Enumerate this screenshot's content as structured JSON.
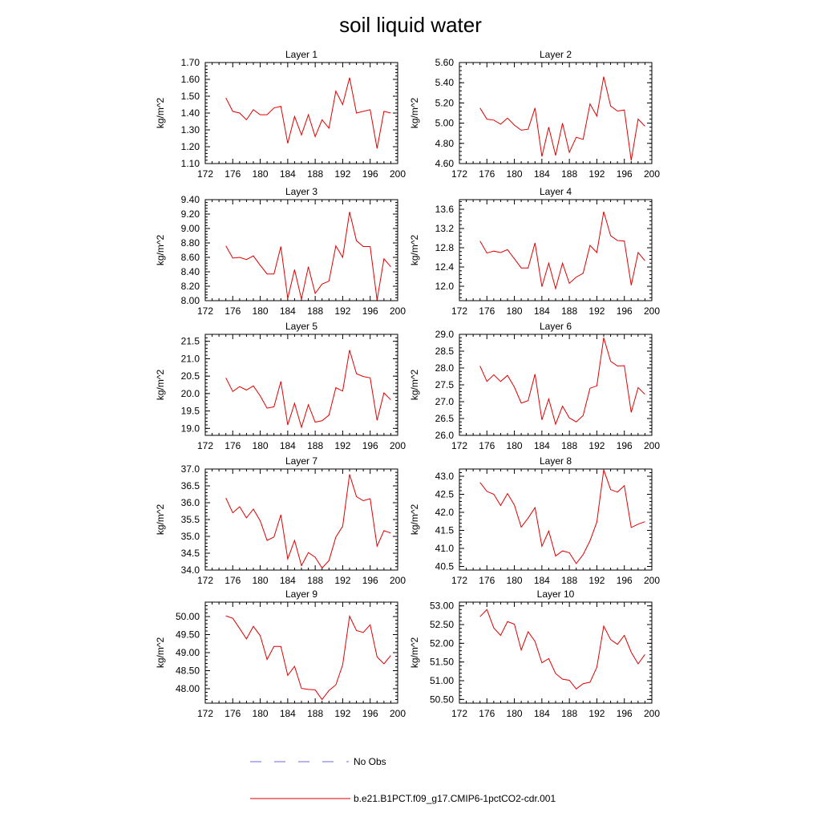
{
  "figure": {
    "title": "soil liquid water",
    "legend": [
      {
        "label": "No Obs",
        "color": "#6a6adf",
        "style": "dashed"
      },
      {
        "label": "b.e21.B1PCT.f09_g17.CMIP6-1pctCO2-cdr.001",
        "color": "#e00000",
        "style": "solid"
      }
    ]
  },
  "chart_data": [
    {
      "type": "line",
      "title": "Layer 1",
      "xlabel": "",
      "ylabel": "kg/m^2",
      "xlim": [
        172,
        200
      ],
      "ylim": [
        1.1,
        1.7
      ],
      "x_ticks": [
        172,
        176,
        180,
        184,
        188,
        192,
        196,
        200
      ],
      "y_ticks": [
        "1.10",
        "1.20",
        "1.30",
        "1.40",
        "1.50",
        "1.60",
        "1.70"
      ],
      "y_minor_step": 0.02,
      "series": [
        {
          "x": [
            175,
            176,
            177,
            178,
            179,
            180,
            181,
            182,
            183,
            184,
            185,
            186,
            187,
            188,
            189,
            190,
            191,
            192,
            193,
            194,
            195,
            196,
            197,
            198,
            199
          ],
          "values": [
            1.49,
            1.41,
            1.4,
            1.36,
            1.42,
            1.39,
            1.39,
            1.43,
            1.44,
            1.22,
            1.38,
            1.27,
            1.39,
            1.26,
            1.36,
            1.31,
            1.53,
            1.45,
            1.61,
            1.4,
            1.41,
            1.42,
            1.19,
            1.41,
            1.4
          ]
        }
      ]
    },
    {
      "type": "line",
      "title": "Layer 2",
      "xlabel": "",
      "ylabel": "kg/m^2",
      "xlim": [
        172,
        200
      ],
      "ylim": [
        4.6,
        5.6
      ],
      "x_ticks": [
        172,
        176,
        180,
        184,
        188,
        192,
        196,
        200
      ],
      "y_ticks": [
        "4.60",
        "4.80",
        "5.00",
        "5.20",
        "5.40",
        "5.60"
      ],
      "y_minor_step": 0.04,
      "series": [
        {
          "x": [
            175,
            176,
            177,
            178,
            179,
            180,
            181,
            182,
            183,
            184,
            185,
            186,
            187,
            188,
            189,
            190,
            191,
            192,
            193,
            194,
            195,
            196,
            197,
            198,
            199
          ],
          "values": [
            5.15,
            5.04,
            5.03,
            4.99,
            5.05,
            4.98,
            4.93,
            4.94,
            5.15,
            4.67,
            4.96,
            4.68,
            5.0,
            4.71,
            4.86,
            4.84,
            5.19,
            5.07,
            5.46,
            5.17,
            5.12,
            5.13,
            4.63,
            5.04,
            4.97
          ]
        }
      ]
    },
    {
      "type": "line",
      "title": "Layer 3",
      "xlabel": "",
      "ylabel": "kg/m^2",
      "xlim": [
        172,
        200
      ],
      "ylim": [
        8.0,
        9.4
      ],
      "x_ticks": [
        172,
        176,
        180,
        184,
        188,
        192,
        196,
        200
      ],
      "y_ticks": [
        "8.00",
        "8.20",
        "8.40",
        "8.60",
        "8.80",
        "9.00",
        "9.20",
        "9.40"
      ],
      "y_minor_step": 0.04,
      "series": [
        {
          "x": [
            175,
            176,
            177,
            178,
            179,
            180,
            181,
            182,
            183,
            184,
            185,
            186,
            187,
            188,
            189,
            190,
            191,
            192,
            193,
            194,
            195,
            196,
            197,
            198,
            199
          ],
          "values": [
            8.76,
            8.59,
            8.6,
            8.57,
            8.62,
            8.49,
            8.37,
            8.37,
            8.75,
            8.03,
            8.43,
            8.02,
            8.47,
            8.1,
            8.23,
            8.27,
            8.76,
            8.6,
            9.23,
            8.83,
            8.75,
            8.75,
            8.01,
            8.58,
            8.47
          ]
        }
      ]
    },
    {
      "type": "line",
      "title": "Layer 4",
      "xlabel": "",
      "ylabel": "kg/m^2",
      "xlim": [
        172,
        200
      ],
      "ylim": [
        11.7,
        13.8
      ],
      "x_ticks": [
        172,
        176,
        180,
        184,
        188,
        192,
        196,
        200
      ],
      "y_ticks": [
        "12.0",
        "12.4",
        "12.8",
        "13.2",
        "13.6"
      ],
      "y_minor_step": 0.08,
      "series": [
        {
          "x": [
            175,
            176,
            177,
            178,
            179,
            180,
            181,
            182,
            183,
            184,
            185,
            186,
            187,
            188,
            189,
            190,
            191,
            192,
            193,
            194,
            195,
            196,
            197,
            198,
            199
          ],
          "values": [
            12.94,
            12.69,
            12.73,
            12.7,
            12.76,
            12.57,
            12.38,
            12.38,
            12.9,
            11.99,
            12.48,
            11.95,
            12.48,
            12.06,
            12.19,
            12.27,
            12.85,
            12.7,
            13.55,
            13.05,
            12.95,
            12.94,
            12.02,
            12.7,
            12.53
          ]
        }
      ]
    },
    {
      "type": "line",
      "title": "Layer 5",
      "xlabel": "",
      "ylabel": "kg/m^2",
      "xlim": [
        172,
        200
      ],
      "ylim": [
        18.8,
        21.7
      ],
      "x_ticks": [
        172,
        176,
        180,
        184,
        188,
        192,
        196,
        200
      ],
      "y_ticks": [
        "19.0",
        "19.5",
        "20.0",
        "20.5",
        "21.0",
        "21.5"
      ],
      "y_minor_step": 0.1,
      "series": [
        {
          "x": [
            175,
            176,
            177,
            178,
            179,
            180,
            181,
            182,
            183,
            184,
            185,
            186,
            187,
            188,
            189,
            190,
            191,
            192,
            193,
            194,
            195,
            196,
            197,
            198,
            199
          ],
          "values": [
            20.45,
            20.06,
            20.2,
            20.1,
            20.22,
            19.93,
            19.58,
            19.62,
            20.35,
            19.1,
            19.72,
            19.03,
            19.68,
            19.18,
            19.22,
            19.38,
            20.17,
            20.07,
            21.25,
            20.57,
            20.49,
            20.45,
            19.23,
            20.02,
            19.82
          ]
        }
      ]
    },
    {
      "type": "line",
      "title": "Layer 6",
      "xlabel": "",
      "ylabel": "kg/m^2",
      "xlim": [
        172,
        200
      ],
      "ylim": [
        26.0,
        29.0
      ],
      "x_ticks": [
        172,
        176,
        180,
        184,
        188,
        192,
        196,
        200
      ],
      "y_ticks": [
        "26.0",
        "26.5",
        "27.0",
        "27.5",
        "28.0",
        "28.5",
        "29.0"
      ],
      "y_minor_step": 0.1,
      "series": [
        {
          "x": [
            175,
            176,
            177,
            178,
            179,
            180,
            181,
            182,
            183,
            184,
            185,
            186,
            187,
            188,
            189,
            190,
            191,
            192,
            193,
            194,
            195,
            196,
            197,
            198,
            199
          ],
          "values": [
            28.06,
            27.6,
            27.8,
            27.6,
            27.78,
            27.43,
            26.96,
            27.03,
            27.82,
            26.46,
            27.08,
            26.33,
            26.87,
            26.52,
            26.4,
            26.59,
            27.4,
            27.47,
            28.9,
            28.2,
            28.06,
            28.07,
            26.68,
            27.42,
            27.22
          ]
        }
      ]
    },
    {
      "type": "line",
      "title": "Layer 7",
      "xlabel": "",
      "ylabel": "kg/m^2",
      "xlim": [
        172,
        200
      ],
      "ylim": [
        34.0,
        37.0
      ],
      "x_ticks": [
        172,
        176,
        180,
        184,
        188,
        192,
        196,
        200
      ],
      "y_ticks": [
        "34.0",
        "34.5",
        "35.0",
        "35.5",
        "36.0",
        "36.5",
        "37.0"
      ],
      "y_minor_step": 0.1,
      "series": [
        {
          "x": [
            175,
            176,
            177,
            178,
            179,
            180,
            181,
            182,
            183,
            184,
            185,
            186,
            187,
            188,
            189,
            190,
            191,
            192,
            193,
            194,
            195,
            196,
            197,
            198,
            199
          ],
          "values": [
            36.14,
            35.7,
            35.88,
            35.55,
            35.81,
            35.46,
            34.88,
            34.98,
            35.64,
            34.33,
            34.88,
            34.13,
            34.52,
            34.38,
            34.06,
            34.28,
            34.98,
            35.3,
            36.84,
            36.18,
            36.06,
            36.12,
            34.71,
            35.17,
            35.1
          ]
        }
      ]
    },
    {
      "type": "line",
      "title": "Layer 8",
      "xlabel": "",
      "ylabel": "kg/m^2",
      "xlim": [
        172,
        200
      ],
      "ylim": [
        40.4,
        43.2
      ],
      "x_ticks": [
        172,
        176,
        180,
        184,
        188,
        192,
        196,
        200
      ],
      "y_ticks": [
        "40.5",
        "41.0",
        "41.5",
        "42.0",
        "42.5",
        "43.0"
      ],
      "y_minor_step": 0.1,
      "series": [
        {
          "x": [
            175,
            176,
            177,
            178,
            179,
            180,
            181,
            182,
            183,
            184,
            185,
            186,
            187,
            188,
            189,
            190,
            191,
            192,
            193,
            194,
            195,
            196,
            197,
            198,
            199
          ],
          "values": [
            42.83,
            42.58,
            42.5,
            42.19,
            42.52,
            42.2,
            41.59,
            41.84,
            42.13,
            41.06,
            41.48,
            40.79,
            40.93,
            40.88,
            40.58,
            40.83,
            41.21,
            41.73,
            43.18,
            42.63,
            42.56,
            42.74,
            41.58,
            41.67,
            41.74
          ]
        }
      ]
    },
    {
      "type": "line",
      "title": "Layer 9",
      "xlabel": "",
      "ylabel": "kg/m^2",
      "xlim": [
        172,
        200
      ],
      "ylim": [
        47.6,
        50.4
      ],
      "x_ticks": [
        172,
        176,
        180,
        184,
        188,
        192,
        196,
        200
      ],
      "y_ticks": [
        "48.00",
        "48.50",
        "49.00",
        "49.50",
        "50.00"
      ],
      "y_minor_step": 0.1,
      "series": [
        {
          "x": [
            175,
            176,
            177,
            178,
            179,
            180,
            181,
            182,
            183,
            184,
            185,
            186,
            187,
            188,
            189,
            190,
            191,
            192,
            193,
            194,
            195,
            196,
            197,
            198,
            199
          ],
          "values": [
            50.02,
            49.95,
            49.67,
            49.38,
            49.73,
            49.47,
            48.81,
            49.17,
            49.17,
            48.37,
            48.62,
            48.01,
            47.98,
            47.97,
            47.7,
            47.95,
            48.11,
            48.66,
            50.01,
            49.61,
            49.56,
            49.77,
            48.88,
            48.69,
            48.92
          ]
        }
      ]
    },
    {
      "type": "line",
      "title": "Layer 10",
      "xlabel": "",
      "ylabel": "kg/m^2",
      "xlim": [
        172,
        200
      ],
      "ylim": [
        50.4,
        53.1
      ],
      "x_ticks": [
        172,
        176,
        180,
        184,
        188,
        192,
        196,
        200
      ],
      "y_ticks": [
        "50.50",
        "51.00",
        "51.50",
        "52.00",
        "52.50",
        "53.00"
      ],
      "y_minor_step": 0.1,
      "series": [
        {
          "x": [
            175,
            176,
            177,
            178,
            179,
            180,
            181,
            182,
            183,
            184,
            185,
            186,
            187,
            188,
            189,
            190,
            191,
            192,
            193,
            194,
            195,
            196,
            197,
            198,
            199
          ],
          "values": [
            52.71,
            52.9,
            52.41,
            52.21,
            52.58,
            52.51,
            51.82,
            52.31,
            52.05,
            51.48,
            51.59,
            51.19,
            51.04,
            51.01,
            50.78,
            50.92,
            50.96,
            51.36,
            52.46,
            52.1,
            51.97,
            52.21,
            51.76,
            51.45,
            51.7
          ]
        }
      ]
    }
  ]
}
